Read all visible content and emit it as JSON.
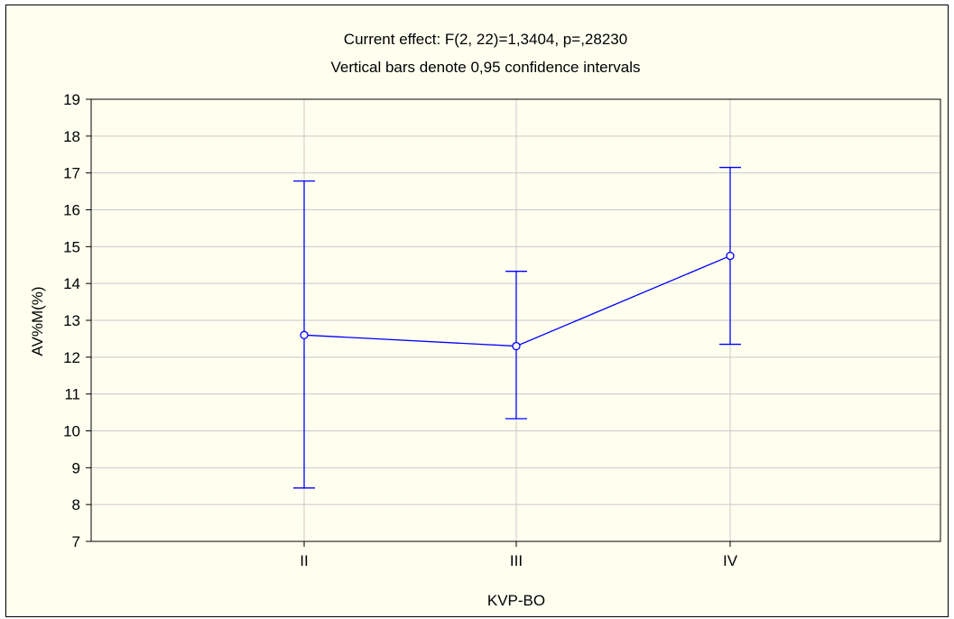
{
  "chart_data": {
    "type": "line",
    "title": "Current effect: F(2, 22)=1,3404, p=,28230",
    "subtitle": "Vertical bars denote 0,95 confidence intervals",
    "xlabel": "KVP-BO",
    "ylabel": "AV%M(%)",
    "categories": [
      "II",
      "III",
      "IV"
    ],
    "series": [
      {
        "values": [
          12.6,
          12.3,
          14.75
        ],
        "ci_lower": [
          8.45,
          10.33,
          12.35
        ],
        "ci_upper": [
          16.78,
          14.33,
          17.15
        ]
      }
    ],
    "ylim": [
      7,
      19
    ],
    "yticks": [
      7,
      8,
      9,
      10,
      11,
      12,
      13,
      14,
      15,
      16,
      17,
      18,
      19
    ],
    "grid": true,
    "legend": "none",
    "colors": {
      "series": "#0000ff",
      "grid": "#c8c8c8",
      "background": "#fffff0",
      "axis": "#000000"
    }
  }
}
